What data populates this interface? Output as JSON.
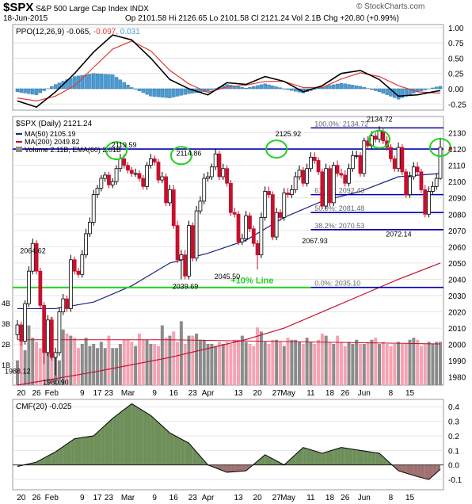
{
  "header": {
    "symbol": "$SPX",
    "name": "S&P 500 Large Cap Index",
    "exchange": "INDX",
    "date": "18-Jun-2015",
    "quote": "Op 2101.58  Hi 2126.65  Lo 2101.58  Cl 2121.24  Vol 2.1B  Chg +20.80 (+0.99%)",
    "watermark": "© StockCharts.com",
    "up_arrow": "▲"
  },
  "colors": {
    "up": "#000000",
    "down": "#c8102e",
    "ma50": "#1a237e",
    "ma200": "#c8102e",
    "volume_up": "#8c8c8c",
    "volume_down": "#f5a3b3",
    "ppo_line": "#000000",
    "ppo_signal": "#e53935",
    "ppo_hist": "#4a9cd6",
    "cmf_pos": "#6e8f5a",
    "cmf_neg": "#a07070",
    "fib_line": "#0000b0",
    "highlight": "#22d022"
  },
  "chart_data": [
    {
      "type": "line",
      "name": "ppo-panel",
      "legend": [
        "PPO(12,26,9)",
        "-0.065",
        "-0.097",
        "0.031"
      ],
      "x": [
        0,
        5,
        10,
        15,
        20,
        25,
        30,
        35,
        40,
        45,
        50,
        55,
        60,
        65,
        70,
        75,
        80,
        85,
        90,
        95,
        100,
        105,
        110,
        111
      ],
      "series": [
        {
          "name": "PPO",
          "values": [
            -0.2,
            -0.3,
            -0.05,
            0.25,
            0.6,
            0.88,
            0.8,
            0.5,
            0.15,
            0,
            -0.1,
            0.1,
            0.07,
            0.2,
            0.12,
            -0.05,
            0.05,
            0.25,
            0.3,
            0.15,
            -0.12,
            -0.1,
            -0.04,
            -0.03
          ]
        },
        {
          "name": "Signal",
          "values": [
            -0.15,
            -0.2,
            -0.12,
            0.05,
            0.35,
            0.65,
            0.78,
            0.62,
            0.3,
            0.08,
            -0.06,
            0.03,
            0.06,
            0.12,
            0.12,
            0.02,
            0.02,
            0.16,
            0.26,
            0.2,
            0.05,
            -0.05,
            -0.07,
            -0.07
          ]
        },
        {
          "name": "Histogram",
          "values": [
            -0.05,
            -0.1,
            0.07,
            0.2,
            0.25,
            0.23,
            0.02,
            -0.12,
            -0.15,
            -0.08,
            -0.04,
            0.07,
            0.01,
            0.08,
            0,
            -0.07,
            0.03,
            0.09,
            0.04,
            -0.05,
            -0.17,
            -0.05,
            0.03,
            0.04
          ]
        }
      ],
      "ylim": [
        -0.35,
        1.05
      ],
      "yticks": [
        "1.00",
        "0.75",
        "0.50",
        "0.25",
        "0.00",
        "-0.25"
      ]
    },
    {
      "type": "candlestick",
      "name": "price-panel",
      "legend": {
        "price": "$SPX (Daily) 2121.24",
        "ma50": "MA(50) 2105.19",
        "ma200": "MA(200) 2049.82",
        "volume": "Volume 2.11B, EMA(60) 2.01B"
      },
      "ylim": [
        1975,
        2140
      ],
      "yticks": [
        "2130",
        "2120",
        "2110",
        "2100",
        "2090",
        "2080",
        "2070",
        "2060",
        "2050",
        "2040",
        "2030",
        "2020",
        "2010",
        "2000",
        "1990",
        "1980"
      ],
      "volume_ticks": [
        "4B",
        "3B",
        "2B",
        "1B"
      ],
      "x": [
        0,
        1,
        2,
        3,
        4,
        5,
        6,
        7,
        8,
        9,
        10,
        11,
        12,
        13,
        14,
        15,
        16,
        17,
        18,
        19,
        20,
        21,
        22,
        23,
        24,
        25,
        26,
        27,
        28,
        29,
        30,
        31,
        32,
        33,
        34,
        35,
        36,
        37,
        38,
        39,
        40,
        41,
        42,
        43,
        44,
        45,
        46,
        47,
        48,
        49,
        50,
        51,
        52,
        53,
        54,
        55,
        56,
        57,
        58,
        59,
        60,
        61,
        62,
        63,
        64,
        65,
        66,
        67,
        68,
        69,
        70,
        71,
        72,
        73,
        74,
        75,
        76,
        77,
        78,
        79,
        80,
        81,
        82,
        83,
        84,
        85,
        86,
        87,
        88,
        89,
        90,
        91,
        92,
        93,
        94,
        95,
        96,
        97,
        98,
        99,
        100,
        101,
        102,
        103,
        104,
        105,
        106,
        107,
        108,
        109,
        110,
        111
      ],
      "close": [
        2012,
        2002,
        2025,
        2045,
        2062,
        2045,
        2024,
        1995,
        2015,
        1992,
        1995,
        2020,
        2028,
        2022,
        2052,
        2045,
        2043,
        2055,
        2068,
        2075,
        2092,
        2096,
        2102,
        2104,
        2098,
        2100,
        2108,
        2114,
        2110,
        2107,
        2105,
        2105,
        2102,
        2097,
        2110,
        2114,
        2112,
        2101,
        2103,
        2087,
        2095,
        2073,
        2052,
        2055,
        2042,
        2073,
        2053,
        2082,
        2088,
        2102,
        2103,
        2109,
        2117,
        2103,
        2108,
        2099,
        2081,
        2080,
        2063,
        2065,
        2079,
        2071,
        2062,
        2055,
        2078,
        2094,
        2092,
        2066,
        2081,
        2078,
        2093,
        2092,
        2095,
        2103,
        2107,
        2099,
        2108,
        2115,
        2113,
        2106,
        2085,
        2108,
        2087,
        2110,
        2105,
        2104,
        2099,
        2108,
        2116,
        2116,
        2105,
        2125,
        2122,
        2128,
        2126,
        2131,
        2125,
        2121,
        2114,
        2108,
        2121,
        2106,
        2092,
        2103,
        2109,
        2106,
        2095,
        2080,
        2094,
        2097,
        2102,
        2121
      ],
      "open": [
        2006,
        2012,
        2002,
        2025,
        2045,
        2062,
        2045,
        2024,
        1995,
        2015,
        1992,
        1995,
        2020,
        2028,
        2022,
        2052,
        2045,
        2043,
        2055,
        2068,
        2075,
        2092,
        2096,
        2102,
        2104,
        2098,
        2100,
        2108,
        2114,
        2110,
        2107,
        2105,
        2105,
        2102,
        2097,
        2110,
        2114,
        2112,
        2101,
        2103,
        2087,
        2095,
        2073,
        2052,
        2055,
        2042,
        2073,
        2053,
        2082,
        2088,
        2102,
        2103,
        2109,
        2117,
        2103,
        2108,
        2099,
        2081,
        2080,
        2063,
        2065,
        2079,
        2071,
        2062,
        2055,
        2078,
        2094,
        2092,
        2066,
        2081,
        2078,
        2093,
        2092,
        2095,
        2103,
        2107,
        2099,
        2108,
        2115,
        2113,
        2106,
        2085,
        2108,
        2087,
        2110,
        2105,
        2104,
        2099,
        2108,
        2116,
        2116,
        2105,
        2125,
        2122,
        2128,
        2126,
        2131,
        2125,
        2121,
        2114,
        2108,
        2121,
        2106,
        2092,
        2103,
        2109,
        2106,
        2095,
        2080,
        2094,
        2097,
        2102
      ],
      "high": [
        2015,
        2014,
        2027,
        2048,
        2065,
        2064,
        2047,
        2026,
        2018,
        2017,
        1998,
        2023,
        2031,
        2030,
        2055,
        2054,
        2047,
        2058,
        2071,
        2078,
        2095,
        2098,
        2104,
        2106,
        2106,
        2102,
        2110,
        2117,
        2117,
        2112,
        2109,
        2108,
        2107,
        2104,
        2112,
        2117,
        2116,
        2114,
        2106,
        2105,
        2098,
        2098,
        2076,
        2058,
        2058,
        2076,
        2075,
        2085,
        2091,
        2105,
        2106,
        2111,
        2120,
        2119,
        2111,
        2110,
        2101,
        2084,
        2082,
        2068,
        2082,
        2081,
        2073,
        2064,
        2081,
        2097,
        2097,
        2094,
        2084,
        2083,
        2096,
        2096,
        2098,
        2106,
        2110,
        2109,
        2111,
        2118,
        2118,
        2115,
        2108,
        2111,
        2110,
        2112,
        2113,
        2108,
        2107,
        2111,
        2119,
        2119,
        2118,
        2127,
        2128,
        2131,
        2130,
        2134,
        2133,
        2128,
        2123,
        2116,
        2124,
        2123,
        2108,
        2106,
        2112,
        2112,
        2108,
        2098,
        2097,
        2100,
        2105,
        2127
      ],
      "low": [
        2003,
        1999,
        2000,
        2023,
        2043,
        2043,
        2022,
        1988,
        1993,
        1990,
        1981,
        1993,
        2018,
        2020,
        2020,
        2043,
        2041,
        2041,
        2053,
        2066,
        2073,
        2090,
        2094,
        2100,
        2096,
        2096,
        2098,
        2106,
        2108,
        2105,
        2103,
        2103,
        2100,
        2095,
        2095,
        2108,
        2110,
        2099,
        2099,
        2085,
        2085,
        2071,
        2050,
        2040,
        2040,
        2040,
        2051,
        2051,
        2080,
        2086,
        2100,
        2101,
        2107,
        2101,
        2101,
        2097,
        2079,
        2078,
        2061,
        2061,
        2063,
        2069,
        2060,
        2046,
        2053,
        2076,
        2090,
        2064,
        2064,
        2076,
        2076,
        2090,
        2090,
        2093,
        2101,
        2097,
        2097,
        2106,
        2111,
        2104,
        2083,
        2083,
        2085,
        2085,
        2103,
        2102,
        2097,
        2097,
        2106,
        2114,
        2103,
        2103,
        2120,
        2120,
        2124,
        2124,
        2123,
        2119,
        2112,
        2106,
        2106,
        2104,
        2090,
        2090,
        2101,
        2104,
        2093,
        2078,
        2078,
        2092,
        2095,
        2101
      ],
      "volume": [
        1.2,
        2.5,
        1.7,
        2.9,
        2.3,
        2.1,
        1.8,
        3.2,
        2.7,
        3.3,
        1.4,
        1.2,
        2.7,
        2.5,
        2.4,
        2.3,
        1.8,
        2.0,
        2.3,
        1.9,
        2.0,
        1.8,
        2.1,
        1.8,
        2.4,
        1.8,
        1.8,
        2.0,
        2.2,
        2.2,
        2.1,
        1.9,
        2.5,
        2.2,
        2.2,
        2.0,
        2.0,
        1.9,
        2.9,
        2.3,
        2.4,
        2.6,
        2.1,
        3.1,
        2.0,
        2.4,
        2.4,
        2.5,
        2.2,
        2.2,
        2.0,
        2.0,
        1.9,
        2.1,
        2.0,
        2.1,
        2.0,
        2.2,
        2.2,
        2.4,
        2.1,
        2.0,
        1.9,
        2.8,
        2.6,
        2.1,
        2.0,
        2.2,
        2.2,
        2.1,
        1.9,
        2.3,
        2.2,
        2.2,
        2.1,
        2.0,
        2.3,
        2.1,
        2.0,
        2.2,
        2.5,
        2.4,
        2.1,
        2.0,
        2.4,
        2.1,
        1.9,
        2.1,
        2.0,
        2.2,
        2.0,
        2.0,
        2.1,
        2.2,
        2.3,
        2.0,
        2.1,
        2.0,
        1.9,
        2.0,
        2.1,
        2.0,
        2.0,
        2.2,
        2.3,
        2.2,
        1.9,
        2.0,
        2.1,
        2.0,
        2.1,
        2.1
      ],
      "ma50": [
        {
          "x": 0,
          "y": 2022
        },
        {
          "x": 10,
          "y": 2022
        },
        {
          "x": 20,
          "y": 2026
        },
        {
          "x": 30,
          "y": 2036
        },
        {
          "x": 40,
          "y": 2050
        },
        {
          "x": 50,
          "y": 2056
        },
        {
          "x": 60,
          "y": 2064
        },
        {
          "x": 70,
          "y": 2078
        },
        {
          "x": 80,
          "y": 2088
        },
        {
          "x": 90,
          "y": 2094
        },
        {
          "x": 100,
          "y": 2103
        },
        {
          "x": 111,
          "y": 2105
        }
      ],
      "ma200": [
        {
          "x": 0,
          "y": 1975
        },
        {
          "x": 20,
          "y": 1983
        },
        {
          "x": 40,
          "y": 1992
        },
        {
          "x": 60,
          "y": 2003
        },
        {
          "x": 70,
          "y": 2010
        },
        {
          "x": 80,
          "y": 2020
        },
        {
          "x": 90,
          "y": 2030
        },
        {
          "x": 100,
          "y": 2040
        },
        {
          "x": 111,
          "y": 2050
        }
      ],
      "volume_ema": [
        {
          "x": 0,
          "y": 2.2
        },
        {
          "x": 40,
          "y": 2.2
        },
        {
          "x": 111,
          "y": 2.0
        }
      ],
      "annotations": [
        {
          "x": 4,
          "y": 2062,
          "text": "2064.62"
        },
        {
          "x": 0,
          "y": 1988,
          "text": "1988.12"
        },
        {
          "x": 10,
          "y": 1981,
          "text": "1980.90"
        },
        {
          "x": 28,
          "y": 2119,
          "text": "2119.59"
        },
        {
          "x": 44,
          "y": 2040,
          "text": "2039.69"
        },
        {
          "x": 45,
          "y": 2114,
          "text": "2114.86"
        },
        {
          "x": 55,
          "y": 2046,
          "text": "2045.50"
        },
        {
          "x": 71,
          "y": 2126,
          "text": "2125.92"
        },
        {
          "x": 78,
          "y": 2068,
          "text": "2067.93"
        },
        {
          "x": 95,
          "y": 2135,
          "text": "2134.72"
        },
        {
          "x": 100,
          "y": 2072,
          "text": "2072.14"
        }
      ],
      "fib_levels": [
        {
          "y": 2133,
          "label": "100.0%: 2134.72"
        },
        {
          "y": 2092,
          "label": "61.8%: 2092.43"
        },
        {
          "y": 2081,
          "label": "50.0%: 2081.48"
        },
        {
          "y": 2070.5,
          "label": "38.2%: 2070.53"
        },
        {
          "y": 2035,
          "label": "0.0%: 2035.10"
        }
      ],
      "resistance": {
        "y": 2120
      },
      "support": {
        "y": 2035,
        "label": "+10% Line"
      },
      "circles": [
        {
          "x": 26,
          "y": 2119
        },
        {
          "x": 43,
          "y": 2116
        },
        {
          "x": 68,
          "y": 2120
        },
        {
          "x": 95,
          "y": 2126
        },
        {
          "x": 111,
          "y": 2121
        }
      ]
    },
    {
      "type": "area",
      "name": "cmf-panel",
      "legend": "CMF(20) -0.025",
      "x": [
        0,
        5,
        10,
        15,
        20,
        25,
        30,
        35,
        40,
        45,
        50,
        55,
        60,
        65,
        70,
        75,
        80,
        85,
        90,
        95,
        100,
        105,
        108,
        111
      ],
      "values": [
        -0.01,
        0.02,
        0.09,
        0.18,
        0.2,
        0.32,
        0.42,
        0.34,
        0.22,
        0.15,
        0.0,
        -0.05,
        -0.04,
        0.07,
        0.0,
        0.12,
        0.08,
        0.12,
        0.1,
        0.08,
        -0.04,
        -0.08,
        -0.1,
        -0.03
      ],
      "ylim": [
        -0.17,
        0.45
      ],
      "yticks": [
        "0.4",
        "0.3",
        "0.2",
        "0.1",
        "0.0",
        "-0.1"
      ]
    }
  ],
  "x_axis": {
    "ticks": [
      {
        "x": 1,
        "label": "20"
      },
      {
        "x": 5,
        "label": "26"
      },
      {
        "x": 9,
        "label": "Feb"
      },
      {
        "x": 17,
        "label": "9"
      },
      {
        "x": 21,
        "label": "17"
      },
      {
        "x": 24,
        "label": "23"
      },
      {
        "x": 29,
        "label": "Mar"
      },
      {
        "x": 36,
        "label": "9"
      },
      {
        "x": 41,
        "label": "16"
      },
      {
        "x": 46,
        "label": "23"
      },
      {
        "x": 50,
        "label": "Apr"
      },
      {
        "x": 58,
        "label": "13"
      },
      {
        "x": 63,
        "label": "20"
      },
      {
        "x": 68,
        "label": "27"
      },
      {
        "x": 71,
        "label": "May"
      },
      {
        "x": 77,
        "label": "11"
      },
      {
        "x": 82,
        "label": "18"
      },
      {
        "x": 86,
        "label": "26"
      },
      {
        "x": 91,
        "label": "Jun"
      },
      {
        "x": 98,
        "label": "8"
      },
      {
        "x": 103,
        "label": "15"
      }
    ]
  }
}
